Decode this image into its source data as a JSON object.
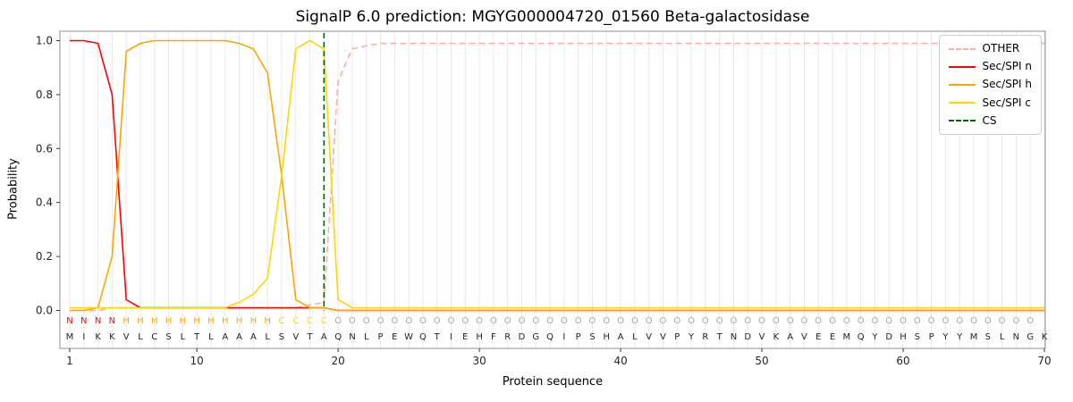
{
  "chart_data": {
    "type": "line",
    "title": "SignalP 6.0 prediction: MGYG000004720_01560 Beta-galactosidase",
    "xlabel": "Protein sequence",
    "ylabel": "Probability",
    "xticks": [
      1,
      10,
      20,
      30,
      40,
      50,
      60,
      70
    ],
    "yticks": [
      "0.0",
      "0.2",
      "0.4",
      "0.6",
      "0.8",
      "1.0"
    ],
    "ylim": [
      0.0,
      1.05
    ],
    "grid": "vertical-per-residue",
    "legend_position": "upper-right",
    "sequence": "MIKKVLCSLTLAAALSVTAQNLPEWQTIEHFRDGQIPSHALVVPYRTNDVKAVEEMQYDHSPYYMSLNGK",
    "region_labels": "NNNNHHHHHHHHHHHCCCCOOOOOOOOOOOOOOOOOOOOOOOOOOOOOOOOOOOOOOOOOOOOOOOOOO",
    "region_colors": {
      "N": "#ff0000",
      "H": "#ffa500",
      "C": "#ffd700",
      "O": "#a6a6a6"
    },
    "sequence_color": "#262626",
    "cs_position": 19,
    "series": [
      {
        "name": "OTHER",
        "color": "#ffaaaa",
        "style": "dashed",
        "values": [
          0.0,
          0.0,
          0.0,
          0.01,
          0.01,
          0.01,
          0.01,
          0.01,
          0.01,
          0.01,
          0.01,
          0.01,
          0.01,
          0.01,
          0.01,
          0.01,
          0.01,
          0.02,
          0.03,
          0.85,
          0.97,
          0.98,
          0.99,
          0.99,
          0.99,
          0.99,
          0.99,
          0.99,
          0.99,
          0.99,
          0.99,
          0.99,
          0.99,
          0.99,
          0.99,
          0.99,
          0.99,
          0.99,
          0.99,
          0.99,
          0.99,
          0.99,
          0.99,
          0.99,
          0.99,
          0.99,
          0.99,
          0.99,
          0.99,
          0.99,
          0.99,
          0.99,
          0.99,
          0.99,
          0.99,
          0.99,
          0.99,
          0.99,
          0.99,
          0.99,
          0.99,
          0.99,
          0.99,
          0.99,
          0.99,
          0.99,
          0.99,
          0.99,
          0.99,
          0.99
        ]
      },
      {
        "name": "Sec/SPI n",
        "color": "#ff0000",
        "style": "solid",
        "values": [
          1.0,
          1.0,
          0.99,
          0.8,
          0.04,
          0.01,
          0.01,
          0.01,
          0.01,
          0.01,
          0.01,
          0.01,
          0.01,
          0.01,
          0.01,
          0.01,
          0.01,
          0.01,
          0.01,
          0.0,
          0.0,
          0.0,
          0.0,
          0.0,
          0.0,
          0.0,
          0.0,
          0.0,
          0.0,
          0.0,
          0.0,
          0.0,
          0.0,
          0.0,
          0.0,
          0.0,
          0.0,
          0.0,
          0.0,
          0.0,
          0.0,
          0.0,
          0.0,
          0.0,
          0.0,
          0.0,
          0.0,
          0.0,
          0.0,
          0.0,
          0.0,
          0.0,
          0.0,
          0.0,
          0.0,
          0.0,
          0.0,
          0.0,
          0.0,
          0.0,
          0.0,
          0.0,
          0.0,
          0.0,
          0.0,
          0.0,
          0.0,
          0.0,
          0.0,
          0.0
        ]
      },
      {
        "name": "Sec/SPI h",
        "color": "#ffa500",
        "style": "solid",
        "values": [
          0.0,
          0.0,
          0.01,
          0.2,
          0.96,
          0.99,
          1.0,
          1.0,
          1.0,
          1.0,
          1.0,
          1.0,
          0.99,
          0.97,
          0.88,
          0.5,
          0.04,
          0.01,
          0.01,
          0.0,
          0.0,
          0.0,
          0.0,
          0.0,
          0.0,
          0.0,
          0.0,
          0.0,
          0.0,
          0.0,
          0.0,
          0.0,
          0.0,
          0.0,
          0.0,
          0.0,
          0.0,
          0.0,
          0.0,
          0.0,
          0.0,
          0.0,
          0.0,
          0.0,
          0.0,
          0.0,
          0.0,
          0.0,
          0.0,
          0.0,
          0.0,
          0.0,
          0.0,
          0.0,
          0.0,
          0.0,
          0.0,
          0.0,
          0.0,
          0.0,
          0.0,
          0.0,
          0.0,
          0.0,
          0.0,
          0.0,
          0.0,
          0.0,
          0.0,
          0.0
        ]
      },
      {
        "name": "Sec/SPI c",
        "color": "#ffd700",
        "style": "solid",
        "values": [
          0.01,
          0.01,
          0.01,
          0.01,
          0.01,
          0.01,
          0.01,
          0.01,
          0.01,
          0.01,
          0.01,
          0.01,
          0.03,
          0.06,
          0.12,
          0.5,
          0.97,
          1.0,
          0.97,
          0.04,
          0.01,
          0.01,
          0.01,
          0.01,
          0.01,
          0.01,
          0.01,
          0.01,
          0.01,
          0.01,
          0.01,
          0.01,
          0.01,
          0.01,
          0.01,
          0.01,
          0.01,
          0.01,
          0.01,
          0.01,
          0.01,
          0.01,
          0.01,
          0.01,
          0.01,
          0.01,
          0.01,
          0.01,
          0.01,
          0.01,
          0.01,
          0.01,
          0.01,
          0.01,
          0.01,
          0.01,
          0.01,
          0.01,
          0.01,
          0.01,
          0.01,
          0.01,
          0.01,
          0.01,
          0.01,
          0.01,
          0.01,
          0.01,
          0.01,
          0.01
        ]
      },
      {
        "name": "CS",
        "color": "#006400",
        "style": "dashed-vline",
        "x": 19
      }
    ]
  }
}
